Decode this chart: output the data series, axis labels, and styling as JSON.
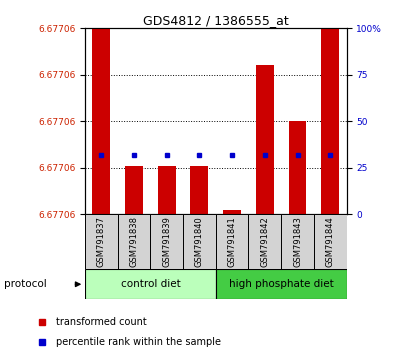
{
  "title": "GDS4812 / 1386555_at",
  "samples": [
    "GSM791837",
    "GSM791838",
    "GSM791839",
    "GSM791840",
    "GSM791841",
    "GSM791842",
    "GSM791843",
    "GSM791844"
  ],
  "bar_color": "#CC0000",
  "percentile_color": "#0000CC",
  "ylim_left": [
    6.677055,
    6.677065
  ],
  "y_ticks_left_count": 5,
  "ylim_right": [
    0,
    100
  ],
  "y_ticks_right": [
    0,
    25,
    50,
    75,
    100
  ],
  "y_labels_right": [
    "0",
    "25",
    "50",
    "75",
    "100%"
  ],
  "tick_label_color_left": "#CC2200",
  "tick_label_color_right": "#0000CC",
  "bar_fracs": [
    1.0,
    0.26,
    0.26,
    0.26,
    0.02,
    0.8,
    0.5,
    1.0
  ],
  "pct_ranks": [
    32,
    32,
    32,
    32,
    32,
    32,
    32,
    32
  ],
  "group1_label": "control diet",
  "group1_color": "#BBFFBB",
  "group2_label": "high phosphate diet",
  "group2_color": "#44CC44",
  "protocol_label": "protocol",
  "legend_tc": "transformed count",
  "legend_pr": "percentile rank within the sample"
}
